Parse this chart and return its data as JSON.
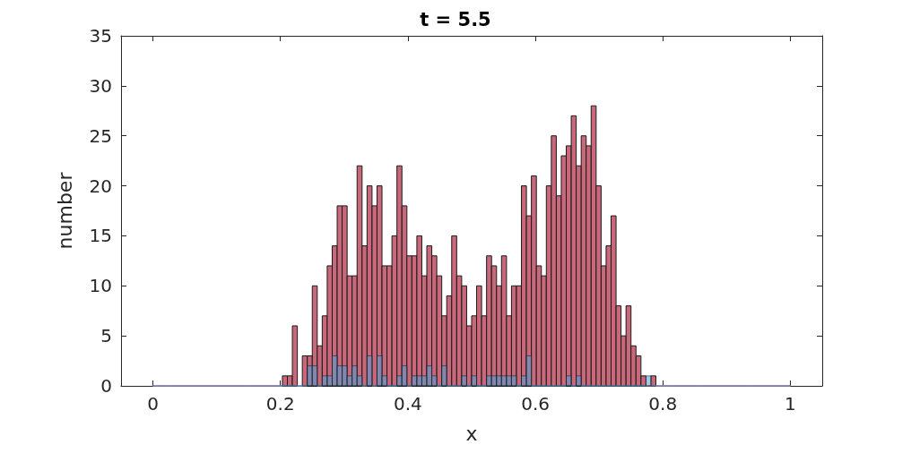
{
  "chart_data": {
    "type": "histogram",
    "title": "t = 5.5",
    "xlabel": "x",
    "ylabel": "number",
    "bins": [
      0,
      0.0078125,
      0.015625,
      0.0234375,
      0.03125,
      0.0390625,
      0.046875,
      0.0546875,
      0.0625,
      0.0703125,
      0.078125,
      0.0859375,
      0.09375,
      0.1015625,
      0.109375,
      0.1171875,
      0.125,
      0.1328125,
      0.140625,
      0.1484375,
      0.15625,
      0.1640625,
      0.171875,
      0.1796875,
      0.1875,
      0.1953125,
      0.203125,
      0.2109375,
      0.21875,
      0.2265625,
      0.234375,
      0.2421875,
      0.25,
      0.2578125,
      0.265625,
      0.2734375,
      0.28125,
      0.2890625,
      0.296875,
      0.3046875,
      0.3125,
      0.3203125,
      0.328125,
      0.3359375,
      0.34375,
      0.3515625,
      0.359375,
      0.3671875,
      0.375,
      0.3828125,
      0.390625,
      0.3984375,
      0.40625,
      0.4140625,
      0.421875,
      0.4296875,
      0.4375,
      0.4453125,
      0.453125,
      0.4609375,
      0.46875,
      0.4765625,
      0.484375,
      0.4921875,
      0.5,
      0.5078125,
      0.515625,
      0.5234375,
      0.53125,
      0.5390625,
      0.546875,
      0.5546875,
      0.5625,
      0.5703125,
      0.578125,
      0.5859375,
      0.59375,
      0.6015625,
      0.609375,
      0.6171875,
      0.625,
      0.6328125,
      0.640625,
      0.6484375,
      0.65625,
      0.6640625,
      0.671875,
      0.6796875,
      0.6875,
      0.6953125,
      0.703125,
      0.7109375,
      0.71875,
      0.7265625,
      0.734375,
      0.7421875,
      0.75,
      0.7578125,
      0.765625,
      0.7734375,
      0.78125,
      0.7890625,
      0.796875,
      0.8046875,
      0.8125,
      0.8203125,
      0.828125,
      0.8359375,
      0.84375,
      0.8515625,
      0.859375,
      0.8671875,
      0.875,
      0.8828125,
      0.890625,
      0.8984375,
      0.90625,
      0.9140625,
      0.921875,
      0.9296875,
      0.9375,
      0.9453125,
      0.953125,
      0.9609375,
      0.96875,
      0.9765625,
      0.984375,
      0.9921875,
      1
    ],
    "series": [
      {
        "color": "#c8687a",
        "values": [
          0,
          0,
          0,
          0,
          0,
          0,
          0,
          0,
          0,
          0,
          0,
          0,
          0,
          0,
          0,
          0,
          0,
          0,
          0,
          0,
          0,
          0,
          0,
          0,
          0,
          0,
          1,
          1,
          6,
          0,
          3,
          3,
          10,
          4,
          7,
          12,
          14,
          18,
          18,
          11,
          11,
          22,
          14,
          20,
          18,
          20,
          12,
          12,
          15,
          22,
          18,
          13,
          13,
          15,
          11,
          14,
          13,
          11,
          7,
          9,
          15,
          11,
          10,
          6,
          7,
          10,
          7,
          13,
          12,
          10,
          13,
          7,
          10,
          10,
          20,
          17,
          21,
          12,
          11,
          20,
          25,
          19,
          23,
          24,
          27,
          22,
          25,
          24,
          28,
          20,
          12,
          14,
          17,
          8,
          5,
          8,
          4,
          3,
          1,
          0,
          1,
          0,
          0,
          0,
          0,
          0,
          0,
          0,
          0,
          0,
          0,
          0,
          0,
          0,
          0,
          0,
          0,
          0,
          0,
          0,
          0,
          0,
          0,
          0,
          0,
          0,
          0,
          0
        ]
      },
      {
        "color": "#4f9fd8",
        "values": [
          0,
          0,
          0,
          0,
          0,
          0,
          0,
          0,
          0,
          0,
          0,
          0,
          0,
          0,
          0,
          0,
          0,
          0,
          0,
          0,
          0,
          0,
          0,
          0,
          0,
          0,
          0,
          0,
          0,
          0,
          0,
          2,
          2,
          0,
          1,
          1,
          3,
          2,
          2,
          1,
          2,
          1,
          0,
          3,
          0,
          3,
          1,
          0,
          0,
          1,
          2,
          0,
          1,
          1,
          1,
          2,
          1,
          0,
          2,
          0,
          0,
          0,
          1,
          0,
          1,
          0,
          0,
          1,
          1,
          1,
          1,
          1,
          1,
          0,
          1,
          3,
          0,
          0,
          0,
          0,
          0,
          0,
          0,
          1,
          0,
          1,
          0,
          0,
          0,
          0,
          0,
          0,
          0,
          0,
          0,
          0,
          0,
          0,
          0,
          1,
          0,
          0,
          0,
          0,
          0,
          0,
          0,
          0,
          0,
          0,
          0,
          0,
          0,
          0,
          0,
          0,
          0,
          0,
          0,
          0,
          0,
          0,
          0,
          0,
          0,
          0,
          0,
          0
        ]
      }
    ],
    "xlim": [
      -0.05,
      1.05
    ],
    "xticks": [
      0,
      0.2,
      0.4,
      0.6,
      0.8,
      1
    ],
    "ylim": [
      0,
      35
    ],
    "yticks": [
      0,
      5,
      10,
      15,
      20,
      25,
      30,
      35
    ],
    "grid": false
  }
}
